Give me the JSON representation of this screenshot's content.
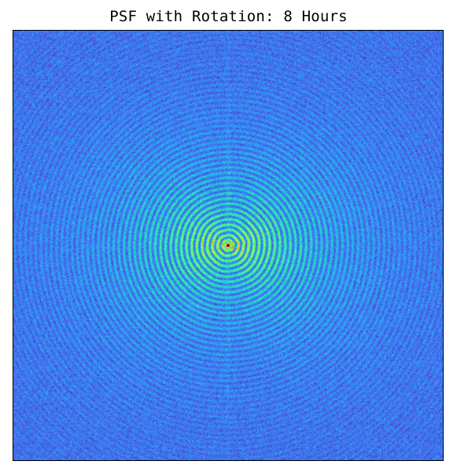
{
  "chart_data": {
    "type": "heatmap",
    "title": "PSF with Rotation: 8 Hours",
    "xlabel": "",
    "ylabel": "",
    "axes_visible": false,
    "grid": false,
    "colormap": "turbo",
    "peak_location": "center",
    "pattern": "concentric rings with speckle noise, bright central peak"
  },
  "colors": {
    "background_low": "#2a3163",
    "noise_mid": "#3f4fa8",
    "ring": "#2a8fd0",
    "ring_bright": "#35c6c0",
    "peak": "#d93a1e",
    "frame": "#000000"
  }
}
